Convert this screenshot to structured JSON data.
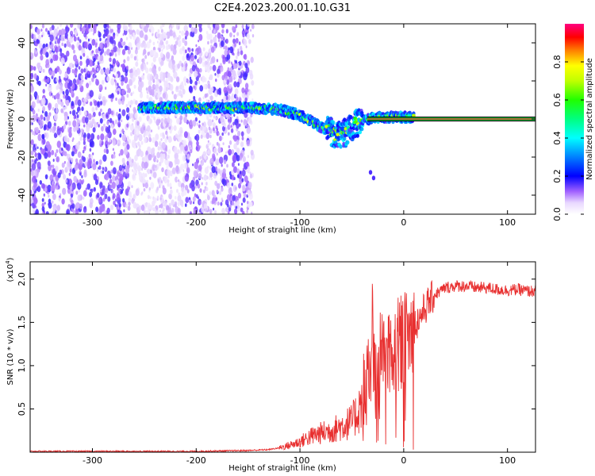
{
  "title": "C2E4.2023.200.01.10.G31",
  "colors": {
    "snr_line": "#e83030",
    "track_line": "#000000",
    "track_center": "#ff2222"
  },
  "chart_data": [
    {
      "type": "heatmap",
      "xlabel": "Height of straight line (km)",
      "ylabel": "Frequency (Hz)",
      "xlim": [
        -360,
        127
      ],
      "ylim": [
        -50,
        50
      ],
      "xticks": [
        -300,
        -200,
        -100,
        0,
        100
      ],
      "yticks": [
        -40,
        -20,
        0,
        20,
        40
      ],
      "colorbar": {
        "label": "Normalized spectral amplitude",
        "range": [
          0.0,
          1.0
        ],
        "ticks": [
          0.0,
          0.2,
          0.4,
          0.6,
          0.8
        ]
      },
      "track": [
        [
          -250,
          6
        ],
        [
          -200,
          6
        ],
        [
          -150,
          6
        ],
        [
          -120,
          5
        ],
        [
          -100,
          2
        ],
        [
          -80,
          -4
        ],
        [
          -65,
          -8
        ],
        [
          -55,
          -7
        ],
        [
          -45,
          -2
        ],
        [
          -35,
          0
        ],
        [
          -20,
          1
        ],
        [
          0,
          1
        ],
        [
          127,
          0
        ]
      ],
      "scatter_region_x": [
        -360,
        -145
      ],
      "stray_points": [
        [
          -32,
          -28
        ],
        [
          -29,
          -31
        ]
      ]
    },
    {
      "type": "line",
      "xlabel": "Height of straight line (km)",
      "ylabel": "SNR (10 * v/v)",
      "y_multiplier": "(x10",
      "y_multiplier_exp": "4",
      "xlim": [
        -360,
        127
      ],
      "ylim": [
        0,
        2.2
      ],
      "xticks": [
        -300,
        -200,
        -100,
        0,
        100
      ],
      "yticks": [
        0.5,
        1.0,
        1.5,
        2.0
      ],
      "ytick_labels": [
        "0.5",
        "1.0",
        "1.5",
        "2.0"
      ],
      "series": [
        {
          "x": [
            -360,
            -300,
            -200,
            -150,
            -130,
            -120,
            -110,
            -100,
            -90,
            -80,
            -70,
            -60,
            -50,
            -45,
            -40,
            -35,
            -30,
            -25,
            -20,
            -15,
            -10,
            -5,
            0,
            5,
            10,
            15,
            20,
            25,
            30,
            40,
            50,
            60,
            70,
            80,
            90,
            100,
            110,
            120,
            127
          ],
          "values": [
            0.01,
            0.01,
            0.01,
            0.02,
            0.03,
            0.05,
            0.08,
            0.12,
            0.18,
            0.22,
            0.25,
            0.3,
            0.35,
            0.45,
            0.6,
            0.8,
            1.0,
            1.05,
            1.1,
            1.15,
            1.2,
            1.25,
            1.3,
            1.35,
            1.45,
            1.55,
            1.65,
            1.75,
            1.82,
            1.9,
            1.92,
            1.92,
            1.9,
            1.9,
            1.88,
            1.87,
            1.88,
            1.86,
            1.86
          ]
        }
      ]
    }
  ]
}
